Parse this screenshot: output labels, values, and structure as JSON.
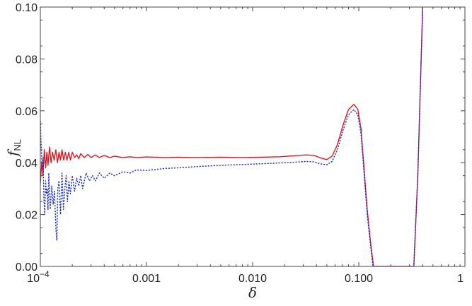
{
  "chart_data": {
    "type": "line",
    "title": "",
    "xlabel": "δ",
    "ylabel_main": "f",
    "ylabel_sub": "NL",
    "xscale": "log",
    "xlim": [
      0.0001,
      1
    ],
    "ylim": [
      0.0,
      0.1
    ],
    "grid": false,
    "legend": "none",
    "x_tick_labels": [
      {
        "value": 0.0001,
        "base": "10",
        "exp": "−4"
      },
      {
        "value": 0.001,
        "label": "0.001"
      },
      {
        "value": 0.01,
        "label": "0.010"
      },
      {
        "value": 0.1,
        "label": "0.100"
      },
      {
        "value": 1,
        "label": "1"
      }
    ],
    "y_tick_labels": [
      {
        "value": 0.0,
        "label": "0.00"
      },
      {
        "value": 0.02,
        "label": "0.02"
      },
      {
        "value": 0.04,
        "label": "0.04"
      },
      {
        "value": 0.06,
        "label": "0.06"
      },
      {
        "value": 0.08,
        "label": "0.08"
      },
      {
        "value": 0.1,
        "label": "0.10"
      }
    ],
    "series": [
      {
        "color": "#e8141c",
        "style": "solid",
        "points": [
          [
            0.0001,
            0.032
          ],
          [
            0.000103,
            0.04
          ],
          [
            0.000106,
            0.035
          ],
          [
            0.000109,
            0.045
          ],
          [
            0.000112,
            0.038
          ],
          [
            0.000115,
            0.044
          ],
          [
            0.000118,
            0.039
          ],
          [
            0.000122,
            0.046
          ],
          [
            0.000126,
            0.04
          ],
          [
            0.00013,
            0.044
          ],
          [
            0.000135,
            0.041
          ],
          [
            0.00014,
            0.045
          ],
          [
            0.000145,
            0.04
          ],
          [
            0.00015,
            0.044
          ],
          [
            0.000155,
            0.041
          ],
          [
            0.00016,
            0.045
          ],
          [
            0.000166,
            0.041
          ],
          [
            0.000172,
            0.044
          ],
          [
            0.000178,
            0.041
          ],
          [
            0.000185,
            0.044
          ],
          [
            0.000192,
            0.041
          ],
          [
            0.0002,
            0.044
          ],
          [
            0.00021,
            0.042
          ],
          [
            0.00022,
            0.043
          ],
          [
            0.00023,
            0.0415
          ],
          [
            0.00024,
            0.0435
          ],
          [
            0.00026,
            0.042
          ],
          [
            0.00028,
            0.0432
          ],
          [
            0.0003,
            0.042
          ],
          [
            0.00033,
            0.043
          ],
          [
            0.00036,
            0.042
          ],
          [
            0.0004,
            0.0428
          ],
          [
            0.00045,
            0.042
          ],
          [
            0.0005,
            0.0425
          ],
          [
            0.0006,
            0.042
          ],
          [
            0.0007,
            0.0423
          ],
          [
            0.0008,
            0.042
          ],
          [
            0.001,
            0.0422
          ],
          [
            0.0015,
            0.042
          ],
          [
            0.002,
            0.0421
          ],
          [
            0.003,
            0.042
          ],
          [
            0.005,
            0.0421
          ],
          [
            0.008,
            0.042
          ],
          [
            0.012,
            0.0421
          ],
          [
            0.018,
            0.0423
          ],
          [
            0.025,
            0.0427
          ],
          [
            0.032,
            0.043
          ],
          [
            0.038,
            0.0428
          ],
          [
            0.044,
            0.0418
          ],
          [
            0.05,
            0.0412
          ],
          [
            0.056,
            0.0425
          ],
          [
            0.063,
            0.047
          ],
          [
            0.071,
            0.0545
          ],
          [
            0.08,
            0.0605
          ],
          [
            0.09,
            0.0625
          ],
          [
            0.098,
            0.0605
          ],
          [
            0.105,
            0.053
          ],
          [
            0.112,
            0.038
          ],
          [
            0.12,
            0.022
          ],
          [
            0.13,
            0.008
          ],
          [
            0.138,
            0.0
          ],
          [
            0.33,
            0.0
          ],
          [
            0.36,
            0.035
          ],
          [
            0.39,
            0.085
          ],
          [
            0.4,
            0.1
          ]
        ]
      },
      {
        "color": "#1c2fd8",
        "style": "dotted",
        "points": [
          [
            0.0001,
            0.056
          ],
          [
            0.000102,
            0.046
          ],
          [
            0.000104,
            0.038
          ],
          [
            0.000106,
            0.042
          ],
          [
            0.000108,
            0.026
          ],
          [
            0.00011,
            0.02
          ],
          [
            0.000112,
            0.033
          ],
          [
            0.000114,
            0.028
          ],
          [
            0.000116,
            0.03
          ],
          [
            0.000118,
            0.022
          ],
          [
            0.00012,
            0.036
          ],
          [
            0.000124,
            0.022
          ],
          [
            0.000128,
            0.031
          ],
          [
            0.000132,
            0.024
          ],
          [
            0.000136,
            0.029
          ],
          [
            0.00014,
            0.015
          ],
          [
            0.000143,
            0.01
          ],
          [
            0.000146,
            0.03
          ],
          [
            0.00015,
            0.033
          ],
          [
            0.000155,
            0.02
          ],
          [
            0.00016,
            0.036
          ],
          [
            0.000165,
            0.022
          ],
          [
            0.00017,
            0.03
          ],
          [
            0.000175,
            0.035
          ],
          [
            0.00018,
            0.025
          ],
          [
            0.000186,
            0.033
          ],
          [
            0.000192,
            0.028
          ],
          [
            0.0002,
            0.035
          ],
          [
            0.00021,
            0.029
          ],
          [
            0.00022,
            0.034
          ],
          [
            0.00023,
            0.031
          ],
          [
            0.00024,
            0.035
          ],
          [
            0.00025,
            0.03
          ],
          [
            0.00027,
            0.036
          ],
          [
            0.00029,
            0.033
          ],
          [
            0.00031,
            0.035
          ],
          [
            0.00033,
            0.033
          ],
          [
            0.00036,
            0.036
          ],
          [
            0.0004,
            0.034
          ],
          [
            0.00045,
            0.036
          ],
          [
            0.0005,
            0.035
          ],
          [
            0.0006,
            0.0365
          ],
          [
            0.0007,
            0.036
          ],
          [
            0.0008,
            0.0372
          ],
          [
            0.001,
            0.037
          ],
          [
            0.0015,
            0.0378
          ],
          [
            0.002,
            0.038
          ],
          [
            0.003,
            0.0385
          ],
          [
            0.005,
            0.039
          ],
          [
            0.008,
            0.0393
          ],
          [
            0.012,
            0.0396
          ],
          [
            0.018,
            0.0399
          ],
          [
            0.025,
            0.0402
          ],
          [
            0.032,
            0.0405
          ],
          [
            0.038,
            0.0403
          ],
          [
            0.044,
            0.0395
          ],
          [
            0.05,
            0.0392
          ],
          [
            0.056,
            0.0405
          ],
          [
            0.063,
            0.045
          ],
          [
            0.071,
            0.0525
          ],
          [
            0.08,
            0.0585
          ],
          [
            0.09,
            0.0605
          ],
          [
            0.098,
            0.0585
          ],
          [
            0.105,
            0.051
          ],
          [
            0.112,
            0.036
          ],
          [
            0.12,
            0.02
          ],
          [
            0.13,
            0.007
          ],
          [
            0.136,
            0.0
          ],
          [
            0.33,
            0.0
          ],
          [
            0.36,
            0.035
          ],
          [
            0.39,
            0.085
          ],
          [
            0.4,
            0.1
          ]
        ]
      }
    ]
  }
}
